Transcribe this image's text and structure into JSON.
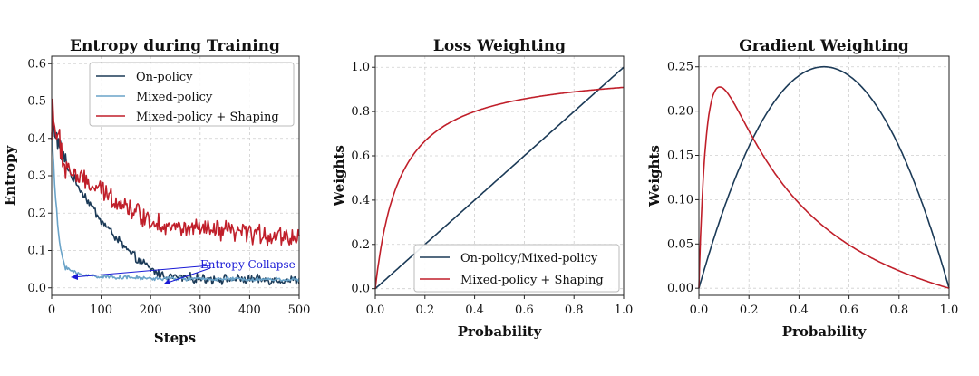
{
  "chart_data": [
    {
      "type": "line",
      "title": "Entropy during Training",
      "xlabel": "Steps",
      "ylabel": "Entropy",
      "xlim": [
        0,
        500
      ],
      "ylim": [
        -0.02,
        0.62
      ],
      "xticks": [
        0,
        100,
        200,
        300,
        400,
        500
      ],
      "xtick_labels": [
        "0",
        "100",
        "200",
        "300",
        "400",
        "500"
      ],
      "yticks": [
        0.0,
        0.1,
        0.2,
        0.3,
        0.4,
        0.5,
        0.6
      ],
      "ytick_labels": [
        "0.0",
        "0.1",
        "0.2",
        "0.3",
        "0.4",
        "0.5",
        "0.6"
      ],
      "grid": true,
      "legend_position": "top-right",
      "series": [
        {
          "name": "On-policy",
          "color": "#1b3a57",
          "noise": 0.01,
          "x": [
            0,
            5,
            10,
            15,
            20,
            30,
            40,
            50,
            60,
            70,
            80,
            100,
            120,
            140,
            160,
            180,
            200,
            220,
            240,
            260,
            300,
            350,
            400,
            450,
            500
          ],
          "y": [
            0.45,
            0.43,
            0.4,
            0.38,
            0.36,
            0.33,
            0.3,
            0.28,
            0.26,
            0.24,
            0.22,
            0.18,
            0.15,
            0.12,
            0.09,
            0.07,
            0.05,
            0.035,
            0.03,
            0.028,
            0.025,
            0.023,
            0.022,
            0.021,
            0.02
          ]
        },
        {
          "name": "Mixed-policy",
          "color": "#6aa3c8",
          "noise": 0.004,
          "x": [
            0,
            5,
            10,
            15,
            20,
            25,
            30,
            40,
            50,
            60,
            80,
            100,
            150,
            200,
            300,
            400,
            500
          ],
          "y": [
            0.42,
            0.3,
            0.2,
            0.13,
            0.09,
            0.07,
            0.055,
            0.045,
            0.04,
            0.035,
            0.033,
            0.03,
            0.028,
            0.025,
            0.024,
            0.023,
            0.022
          ]
        },
        {
          "name": "Mixed-policy + Shaping",
          "color": "#c01f2a",
          "noise": 0.022,
          "x": [
            0,
            3,
            6,
            10,
            15,
            20,
            30,
            40,
            50,
            70,
            100,
            150,
            200,
            250,
            300,
            350,
            400,
            450,
            500
          ],
          "y": [
            0.4,
            0.52,
            0.44,
            0.4,
            0.37,
            0.35,
            0.33,
            0.31,
            0.3,
            0.28,
            0.26,
            0.22,
            0.18,
            0.16,
            0.155,
            0.15,
            0.145,
            0.14,
            0.135
          ]
        }
      ],
      "annotation": {
        "text": "Entropy Collapse",
        "color": "#1a1ad6",
        "targets": [
          [
            40,
            0.04
          ],
          [
            230,
            0.025
          ]
        ],
        "text_at": [
          300,
          0.075
        ]
      }
    },
    {
      "type": "line",
      "title": "Loss Weighting",
      "xlabel": "Probability",
      "ylabel": "Weights",
      "xlim": [
        0.0,
        1.0
      ],
      "ylim": [
        -0.03,
        1.05
      ],
      "xticks": [
        0.0,
        0.2,
        0.4,
        0.6,
        0.8,
        1.0
      ],
      "xtick_labels": [
        "0.0",
        "0.2",
        "0.4",
        "0.6",
        "0.8",
        "1.0"
      ],
      "yticks": [
        0.0,
        0.2,
        0.4,
        0.6,
        0.8,
        1.0
      ],
      "ytick_labels": [
        "0.0",
        "0.2",
        "0.4",
        "0.6",
        "0.8",
        "1.0"
      ],
      "grid": true,
      "legend_position": "bottom-right",
      "series": [
        {
          "name": "On-policy/Mixed-policy",
          "color": "#1b3a57",
          "function": "p"
        },
        {
          "name": "Mixed-policy + Shaping",
          "color": "#c01f2a",
          "function": "p/(p+0.1)"
        }
      ]
    },
    {
      "type": "line",
      "title": "Gradient Weighting",
      "xlabel": "Probability",
      "ylabel": "Weights",
      "xlim": [
        0.0,
        1.0
      ],
      "ylim": [
        -0.008,
        0.262
      ],
      "xticks": [
        0.0,
        0.2,
        0.4,
        0.6,
        0.8,
        1.0
      ],
      "xtick_labels": [
        "0.0",
        "0.2",
        "0.4",
        "0.6",
        "0.8",
        "1.0"
      ],
      "yticks": [
        0.0,
        0.05,
        0.1,
        0.15,
        0.2,
        0.25
      ],
      "ytick_labels": [
        "0.00",
        "0.05",
        "0.10",
        "0.15",
        "0.20",
        "0.25"
      ],
      "grid": true,
      "legend_position": "none",
      "series": [
        {
          "name": "On-policy/Mixed-policy",
          "color": "#1b3a57",
          "function": "p(1-p)"
        },
        {
          "name": "Mixed-policy + Shaping",
          "color": "#c01f2a",
          "function": "0.1p(1-p)/(p+0.1)^2"
        }
      ]
    }
  ]
}
